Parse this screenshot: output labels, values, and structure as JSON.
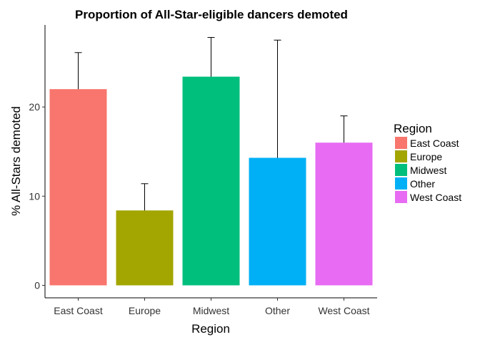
{
  "chart_data": {
    "type": "bar",
    "title": "Proportion of All-Star-eligible dancers demoted",
    "xlabel": "Region",
    "ylabel": "% All-Stars demoted",
    "categories": [
      "East Coast",
      "Europe",
      "Midwest",
      "Other",
      "West Coast"
    ],
    "values": [
      22.0,
      8.4,
      23.4,
      14.3,
      16.0
    ],
    "error_upper": [
      26.1,
      11.4,
      27.8,
      27.5,
      19.0
    ],
    "colors": [
      "#F8766D",
      "#A3A500",
      "#00BF7D",
      "#00B0F6",
      "#E76BF3"
    ],
    "ylim": [
      -1.4,
      29.2
    ],
    "yticks": [
      0,
      10,
      20
    ],
    "grid": false,
    "legend": {
      "title": "Region",
      "placement": "right",
      "entries": [
        "East Coast",
        "Europe",
        "Midwest",
        "Other",
        "West Coast"
      ]
    }
  }
}
